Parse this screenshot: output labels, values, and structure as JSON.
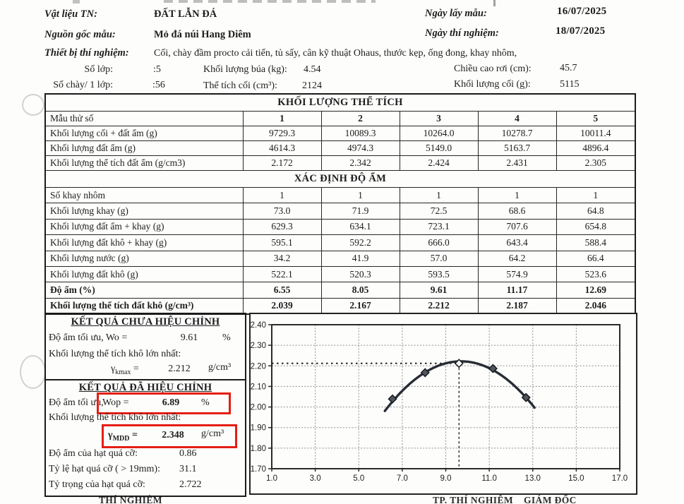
{
  "header": {
    "material_label": "Vật liệu TN:",
    "material_value": "ĐẤT LẪN ĐÁ",
    "sample_date_label": "Ngày lấy mẫu:",
    "sample_date_value": "16/07/2025",
    "origin_label": "Nguồn gốc mẫu:",
    "origin_value": "Mỏ đá núi Hang Diêm",
    "test_date_label": "Ngày thí nghiệm:",
    "test_date_value": "18/07/2025",
    "equipment_label": "Thiết bị thí nghiệm:",
    "equipment_value": "Cối, chày đầm procto cải tiến, tủ sấy, cân kỹ thuật Ohaus, thước kẹp, ống đong, khay nhôm,",
    "layers_label": "Số lớp:",
    "layers_value": ":5",
    "hammer_label": "Khối lượng búa (kg):",
    "hammer_value": "4.54",
    "drop_label": "Chiều cao rơi (cm):",
    "drop_value": "45.7",
    "blows_label": "Số chày/ 1 lớp:",
    "blows_value": ":56",
    "mold_vol_label": "Thể tích cối (cm³):",
    "mold_vol_value": "2124",
    "mold_mass_label": "Khối lượng cối (g):",
    "mold_mass_value": "5115"
  },
  "tables": {
    "section1": {
      "title": "KHỐI LƯỢNG THỂ TÍCH",
      "header_row": {
        "label": "Mẫu thử số",
        "values": [
          "1",
          "2",
          "3",
          "4",
          "5"
        ]
      },
      "rows": [
        {
          "label": "Khối lượng cối + đất ẩm (g)",
          "values": [
            "9729.3",
            "10089.3",
            "10264.0",
            "10278.7",
            "10011.4"
          ]
        },
        {
          "label": "Khối lượng đất ẩm (g)",
          "values": [
            "4614.3",
            "4974.3",
            "5149.0",
            "5163.7",
            "4896.4"
          ]
        },
        {
          "label": "Khối lượng thể tích đất ẩm (g/cm3)",
          "values": [
            "2.172",
            "2.342",
            "2.424",
            "2.431",
            "2.305"
          ]
        }
      ]
    },
    "section2": {
      "title": "XÁC ĐỊNH ĐỘ ẨM",
      "rows": [
        {
          "label": "Số khay nhôm",
          "values": [
            "1",
            "1",
            "1",
            "1",
            "1"
          ]
        },
        {
          "label": "Khối lượng khay (g)",
          "values": [
            "73.0",
            "71.9",
            "72.5",
            "68.6",
            "64.8"
          ]
        },
        {
          "label": "Khối lượng đất ẩm + khay (g)",
          "values": [
            "629.3",
            "634.1",
            "723.1",
            "707.6",
            "654.8"
          ]
        },
        {
          "label": "Khối lượng đất khô + khay (g)",
          "values": [
            "595.1",
            "592.2",
            "666.0",
            "643.4",
            "588.4"
          ]
        },
        {
          "label": "Khối lượng nước (g)",
          "values": [
            "34.2",
            "41.9",
            "57.0",
            "64.2",
            "66.4"
          ]
        },
        {
          "label": "Khối lượng đất khô (g)",
          "values": [
            "522.1",
            "520.3",
            "593.5",
            "574.9",
            "523.6"
          ]
        },
        {
          "label": "Độ ẩm (%)",
          "values": [
            "6.55",
            "8.05",
            "9.61",
            "11.17",
            "12.69"
          ],
          "bold": true
        },
        {
          "label": "Khối lượng thể tích đất khô (g/cm³)",
          "values": [
            "2.039",
            "2.167",
            "2.212",
            "2.187",
            "2.046"
          ],
          "bold": true
        }
      ]
    }
  },
  "results": {
    "uncorrected": {
      "title": "KẾT QUẢ CHƯA HIỆU CHỈNH",
      "wo_label": "Độ ẩm tối ưu, Wo =",
      "wo_value": "9.61",
      "wo_unit": "%",
      "intro": "Khối lượng thể tích khô lớn nhất:",
      "gamma_symbol": "γ",
      "gamma_sub": "kmax",
      "gamma_eq": "=",
      "gamma_value": "2.212",
      "gamma_unit": "g/cm³"
    },
    "corrected": {
      "title": "KẾT QUẢ ĐÃ HIỆU CHỈNH",
      "wop_label": "Độ ẩm tối ưu,",
      "wop_symbol": "Wop =",
      "wop_value": "6.89",
      "wop_unit": "%",
      "intro": "Khối lượng thể tích khô lớn nhất:",
      "gamma_symbol": "γ",
      "gamma_sub": "MDD",
      "gamma_eq": "=",
      "gamma_value": "2.348",
      "gamma_unit": "g/cm³",
      "extra_rows": [
        {
          "label": "Độ ẩm của hạt quá cỡ:",
          "value": "0.86"
        },
        {
          "label": "Tỷ lệ hạt quá cỡ ( > 19mm):",
          "value": "31.1"
        },
        {
          "label": "Tỷ trọng của hạt quá cỡ:",
          "value": "2.722"
        }
      ]
    }
  },
  "chart_data": {
    "type": "scatter",
    "title": "",
    "xlabel": "",
    "ylabel": "",
    "x": [
      6.55,
      8.05,
      9.61,
      11.17,
      12.69
    ],
    "y": [
      2.039,
      2.167,
      2.212,
      2.187,
      2.046
    ],
    "open_marker_index": 2,
    "xlim": [
      1.0,
      17.0
    ],
    "ylim": [
      1.7,
      2.4
    ],
    "xticks": [
      "1.0",
      "3.0",
      "5.0",
      "7.0",
      "9.0",
      "11.0",
      "13.0",
      "15.0",
      "17.0"
    ],
    "yticks": [
      "1.70",
      "1.80",
      "1.90",
      "2.00",
      "2.10",
      "2.20",
      "2.30",
      "2.40"
    ],
    "grid": true,
    "legend": null,
    "curve": {
      "type": "parabola",
      "peak_x": 9.7,
      "peak_y": 2.222,
      "a": -0.0197,
      "x_start": 6.2,
      "x_end": 13.15
    },
    "peak_marker_lines": {
      "x": 9.61,
      "y": 2.212
    }
  },
  "footer": {
    "tester": "THÍ NGHIỆM",
    "lab_head": "TP. THÍ NGHIỆM",
    "director": "GIÁM ĐỐC"
  }
}
